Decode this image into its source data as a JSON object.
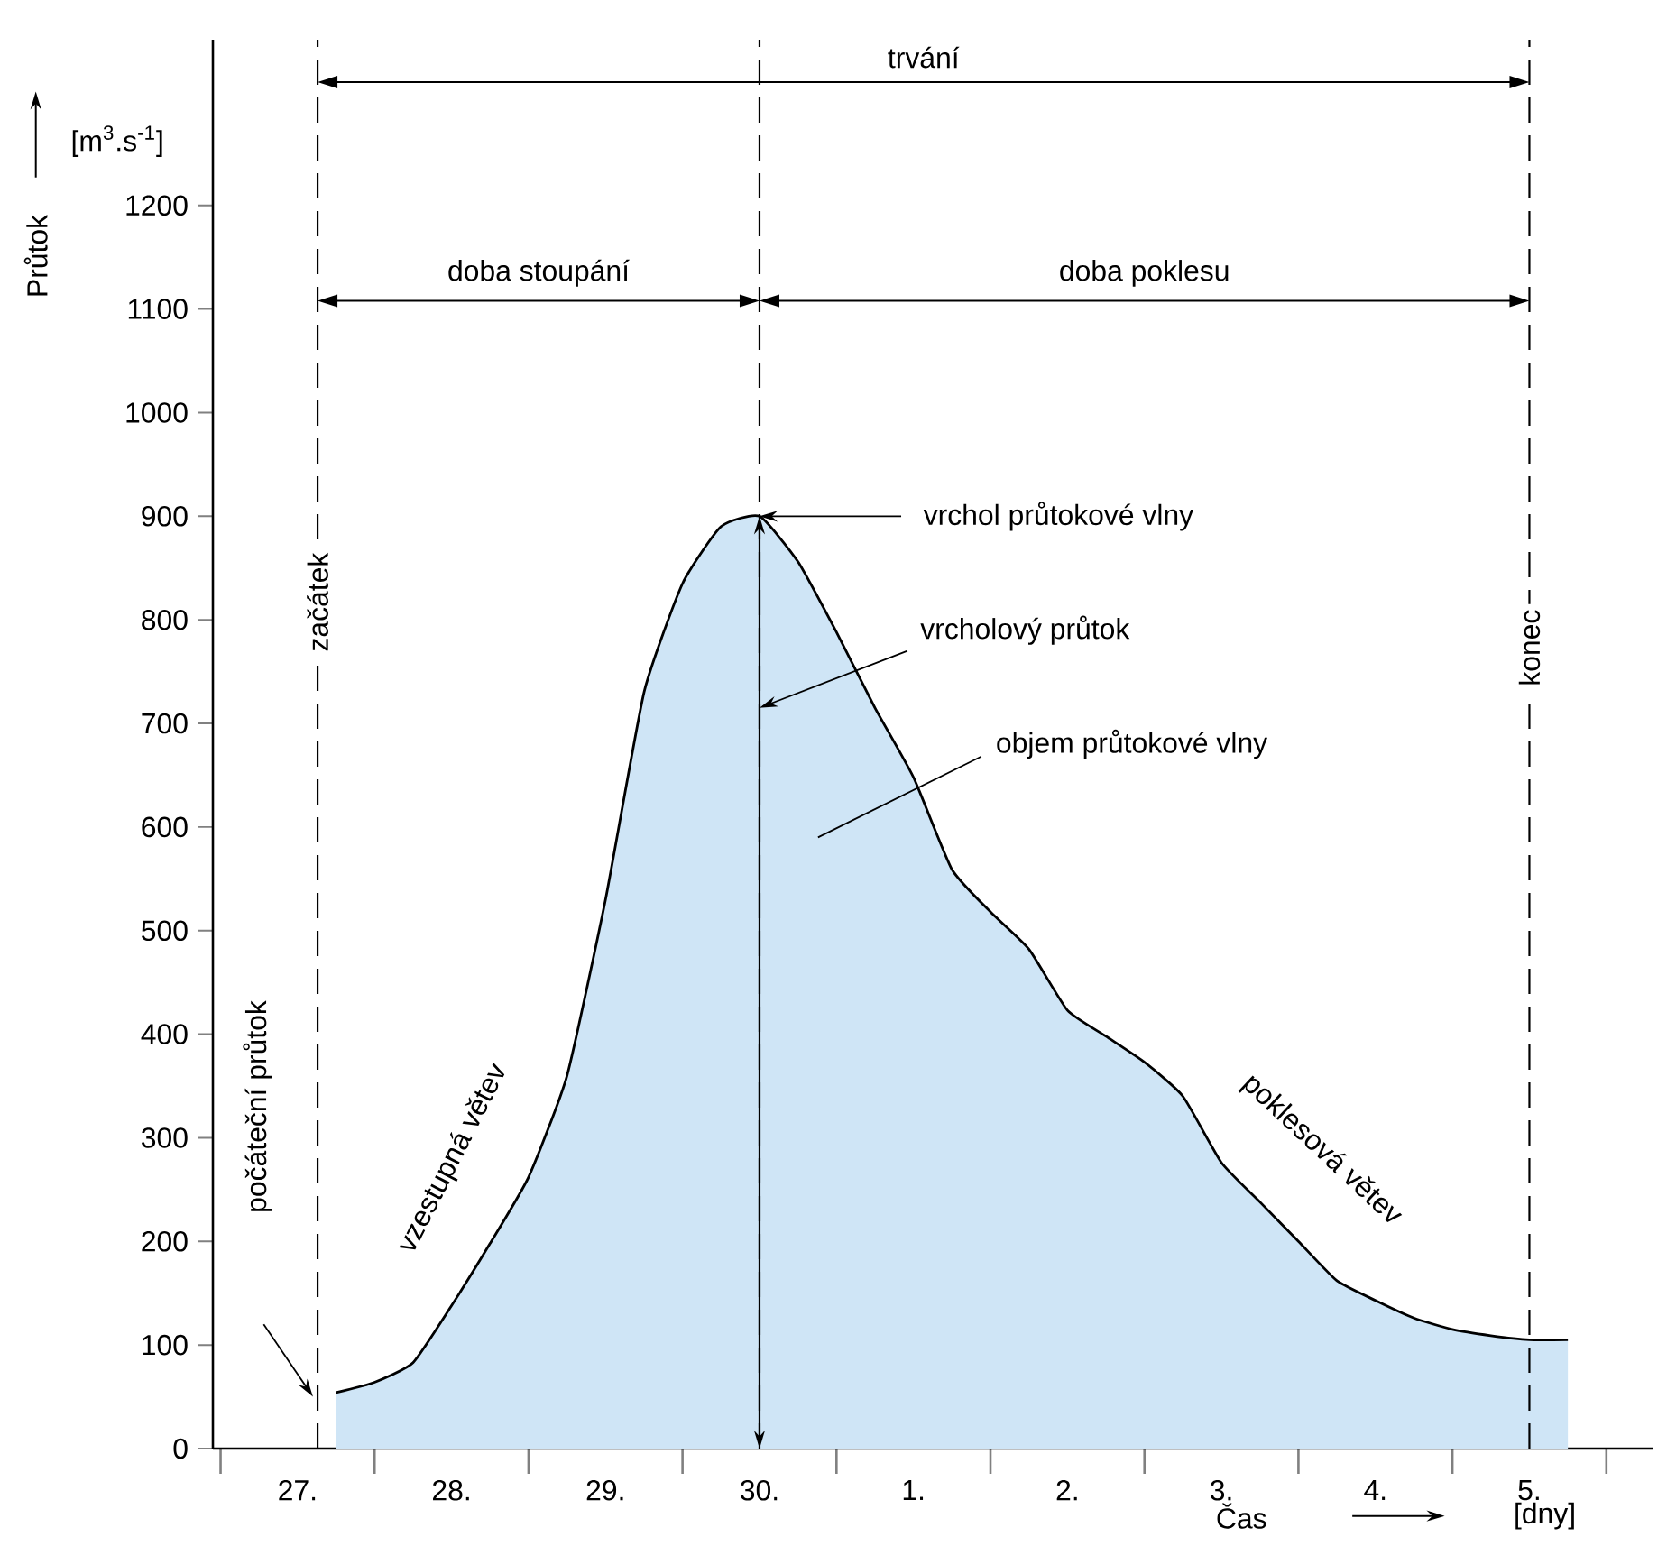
{
  "chart_data": {
    "type": "area",
    "xlabel": "Čas",
    "ylabel": "Průtok",
    "categories": [
      "27.",
      null,
      null,
      null,
      "28.",
      null,
      null,
      null,
      "29.",
      null,
      null,
      null,
      "30.",
      null,
      null,
      null,
      "1.",
      null,
      null,
      null,
      "2.",
      null,
      null,
      null,
      "3.",
      null,
      null,
      null,
      "4.",
      null,
      null,
      null,
      "5.",
      null
    ],
    "series": [
      {
        "color": "#cfe5f6",
        "values": [
          null,
          54,
          64,
          83,
          138,
          198,
          262,
          360,
          530,
          730,
          835,
          890,
          900,
          856,
          788,
          715,
          648,
          559,
          518,
          482,
          423,
          398,
          373,
          340,
          276,
          238,
          200,
          162,
          143,
          126,
          115,
          109,
          105,
          105
        ]
      }
    ],
    "ylim": [
      0,
      1360
    ],
    "yticks": [
      0,
      100,
      200,
      300,
      400,
      500,
      600,
      700,
      800,
      900,
      1000,
      1100,
      1200
    ],
    "annotations": [
      "vrchol průtokové vlny",
      "vrcholový průtok",
      "objem průtokové vlny",
      "počáteční průtok",
      "vzestupná větev",
      "poklesová větev",
      "trvání",
      "doba stoupání",
      "doba poklesu",
      "[m$^{3}$.s$^{-1}$]",
      "[dny]",
      "začátek",
      "konec"
    ]
  }
}
